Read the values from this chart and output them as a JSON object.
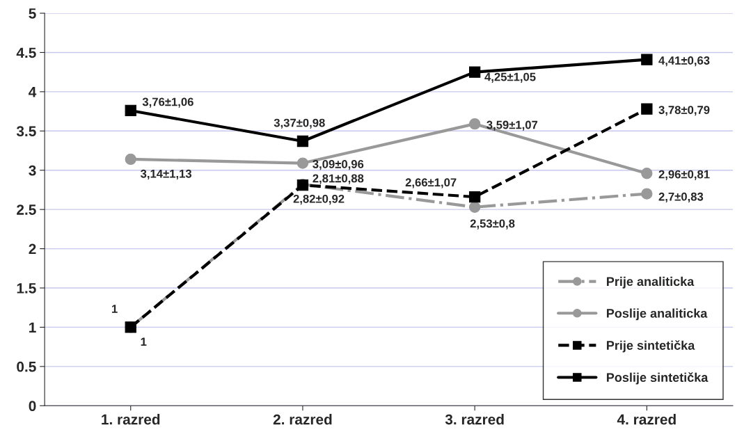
{
  "chart_data": {
    "type": "line",
    "categories": [
      "1. razred",
      "2. razred",
      "3. razred",
      "4. razred"
    ],
    "series": [
      {
        "name": "Prije analiticka",
        "color": "#999999",
        "marker": "circle",
        "line_style": "dashdot",
        "values": [
          1,
          2.82,
          2.53,
          2.7
        ],
        "value_labels": [
          "1",
          "2,82±0,92",
          "2,53±0,8",
          "2,7±0,83"
        ]
      },
      {
        "name": "Poslije analiticka",
        "color": "#999999",
        "marker": "circle",
        "line_style": "solid",
        "values": [
          3.14,
          3.09,
          3.59,
          2.96
        ],
        "value_labels": [
          "3,14±1,13",
          "3,09±0,96",
          "3,59±1,07",
          "2,96±0,81"
        ]
      },
      {
        "name": "Prije sintetička",
        "color": "#000000",
        "marker": "square",
        "line_style": "dashed",
        "values": [
          1,
          2.81,
          2.66,
          3.78
        ],
        "value_labels": [
          "1",
          "2,81±0,88",
          "2,66±1,07",
          "3,78±0,79"
        ]
      },
      {
        "name": "Poslije sintetička",
        "color": "#000000",
        "marker": "square",
        "line_style": "solid",
        "values": [
          3.76,
          3.37,
          4.25,
          4.41
        ],
        "value_labels": [
          "3,76±1,06",
          "3,37±0,98",
          "4,25±1,05",
          "4,41±0,63"
        ]
      }
    ],
    "ylim": [
      0,
      5
    ],
    "yticks": [
      0,
      0.5,
      1,
      1.5,
      2,
      2.5,
      3,
      3.5,
      4,
      4.5,
      5
    ],
    "grid": "y",
    "legend": "bottom right"
  }
}
